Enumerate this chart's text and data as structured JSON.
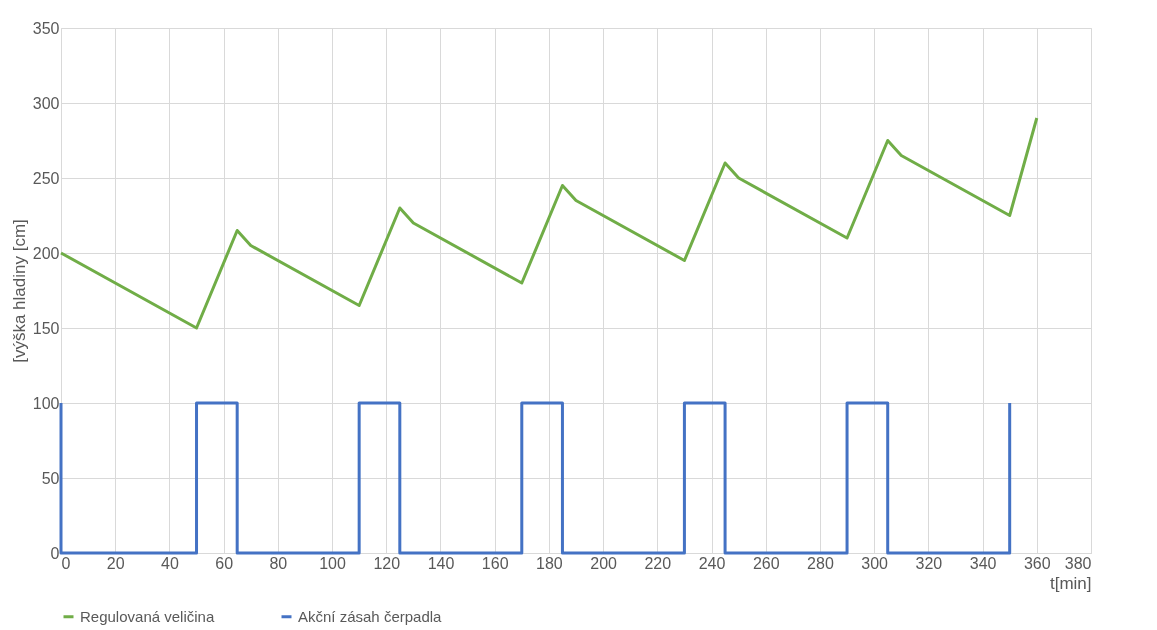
{
  "chart_data": {
    "type": "line",
    "xlabel": "t[min]",
    "ylabel": "[výška hladiny [cm]",
    "xlim": [
      0,
      380
    ],
    "xticks": [
      0,
      20,
      40,
      60,
      80,
      100,
      120,
      140,
      160,
      180,
      200,
      220,
      240,
      260,
      280,
      300,
      320,
      340,
      360,
      380
    ],
    "ylim": [
      0,
      350
    ],
    "yticks": [
      0,
      50,
      100,
      150,
      200,
      250,
      300,
      350
    ],
    "grid": true,
    "legend": "bottom",
    "marker": "none",
    "line_style": "solid",
    "series": [
      {
        "name": "Regulovaná veličina",
        "color": "#70ad47",
        "x": [
          0,
          50,
          65,
          70,
          110,
          125,
          130,
          170,
          185,
          190,
          230,
          245,
          250,
          290,
          305,
          310,
          350,
          360
        ],
        "values": [
          200,
          150,
          215,
          205,
          165,
          230,
          220,
          180,
          245,
          235,
          195,
          260,
          250,
          210,
          275,
          265,
          225,
          290
        ]
      },
      {
        "name": "Akční zásah čerpadla",
        "color": "#4472c4",
        "x": [
          0,
          0,
          50,
          50,
          65,
          65,
          110,
          110,
          125,
          125,
          170,
          170,
          185,
          185,
          230,
          230,
          245,
          245,
          290,
          290,
          305,
          305,
          350,
          350
        ],
        "values": [
          100,
          0,
          0,
          100,
          100,
          0,
          0,
          100,
          100,
          0,
          0,
          100,
          100,
          0,
          0,
          100,
          100,
          0,
          0,
          100,
          100,
          0,
          0,
          100
        ]
      }
    ]
  }
}
